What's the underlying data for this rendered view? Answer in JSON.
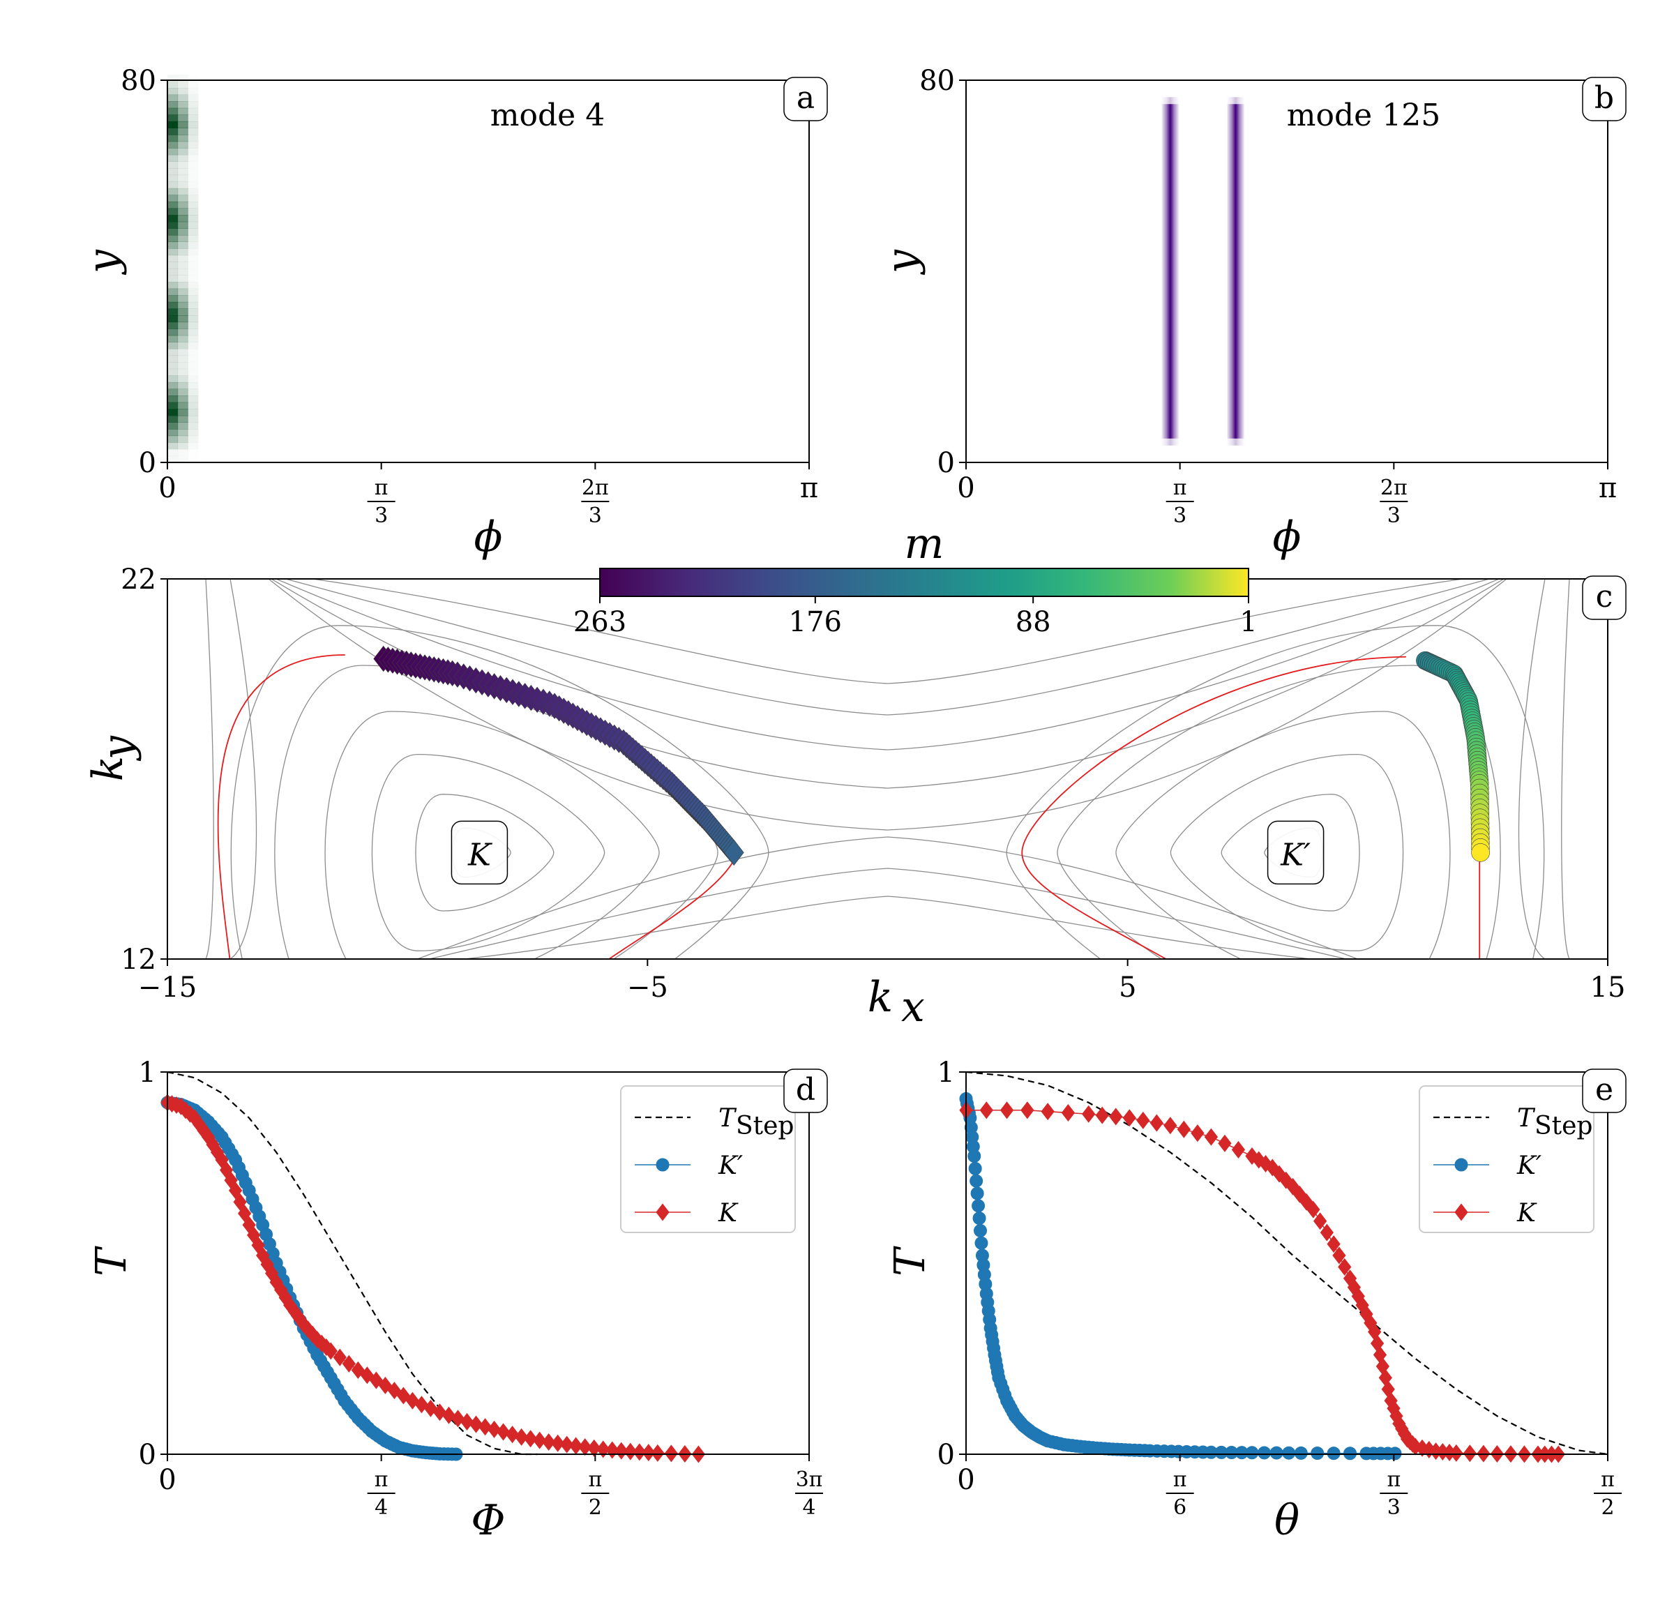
{
  "chart_data": [
    {
      "panel": "a",
      "type": "heatmap",
      "annotation": "mode 4",
      "xlabel": "ϕ",
      "ylabel": "y",
      "xlim": [
        0,
        3.14159
      ],
      "ylim": [
        0,
        80
      ],
      "xticks": [
        {
          "value": 0,
          "label": "0"
        },
        {
          "value": 1.0472,
          "num": "π",
          "den": "3"
        },
        {
          "value": 2.0944,
          "num": "2π",
          "den": "3"
        },
        {
          "value": 3.14159,
          "label": "π"
        }
      ],
      "yticks": [
        {
          "value": 0,
          "label": "0"
        },
        {
          "value": 80,
          "label": "80"
        }
      ],
      "colormap": "Greens",
      "columns": [
        0.0,
        0.05,
        0.1
      ],
      "column_width": 0.05,
      "blobs_y": [
        10,
        30,
        50,
        70
      ],
      "color_dark": "#00441b"
    },
    {
      "panel": "b",
      "type": "heatmap",
      "annotation": "mode 125",
      "xlabel": "ϕ",
      "ylabel": "y",
      "xlim": [
        0,
        3.14159
      ],
      "ylim": [
        0,
        80
      ],
      "xticks": [
        {
          "value": 0,
          "label": "0"
        },
        {
          "value": 1.0472,
          "num": "π",
          "den": "3"
        },
        {
          "value": 2.0944,
          "num": "2π",
          "den": "3"
        },
        {
          "value": 3.14159,
          "label": "π"
        }
      ],
      "yticks": [
        {
          "value": 0,
          "label": "0"
        },
        {
          "value": 80,
          "label": "80"
        }
      ],
      "colormap": "Purples",
      "stripes_x": [
        1.0,
        1.32
      ],
      "stripe_y_range": [
        5,
        75
      ],
      "color_dark": "#3f007d"
    },
    {
      "panel": "c",
      "type": "scatter",
      "xlabel": "k_x",
      "ylabel": "k_y",
      "xlim": [
        -15,
        15
      ],
      "ylim": [
        12,
        22
      ],
      "xticks": [
        -15,
        -5,
        5,
        15
      ],
      "xtick_labels": [
        "−15",
        "−5",
        "5",
        "15"
      ],
      "yticks": [
        12,
        22
      ],
      "valley_labels": [
        {
          "label": "K",
          "x": -8.5,
          "y": 14.8
        },
        {
          "label": "K′",
          "x": 8.5,
          "y": 14.8
        }
      ],
      "colorbar": {
        "label": "m",
        "ticks": [
          "263",
          "176",
          "88",
          "1"
        ],
        "range": [
          263,
          1
        ],
        "colormap": "viridis"
      },
      "series": [
        {
          "name": "K",
          "marker": "diamond",
          "m_range": [
            263,
            170
          ],
          "points": [
            [
              -10.5,
              19.9
            ],
            [
              -9.0,
              19.5
            ],
            [
              -7.0,
              18.7
            ],
            [
              -5.5,
              17.7
            ],
            [
              -4.5,
              16.6
            ],
            [
              -3.8,
              15.7
            ],
            [
              -3.2,
              14.8
            ]
          ]
        },
        {
          "name": "K′",
          "marker": "circle",
          "m_range": [
            135,
            1
          ],
          "points": [
            [
              11.2,
              19.85
            ],
            [
              11.8,
              19.5
            ],
            [
              12.1,
              18.8
            ],
            [
              12.25,
              17.8
            ],
            [
              12.33,
              16.6
            ],
            [
              12.35,
              14.8
            ]
          ]
        }
      ],
      "contour_center_y": 14.8,
      "contour_color": "#8c8c8c",
      "fermi_line_color": "#e41a1c"
    },
    {
      "panel": "d",
      "type": "line",
      "xlabel": "Φ",
      "ylabel": "T",
      "xlim": [
        0,
        2.35619
      ],
      "ylim": [
        0,
        1
      ],
      "xticks": [
        {
          "value": 0,
          "label": "0"
        },
        {
          "value": 0.7854,
          "num": "π",
          "den": "4"
        },
        {
          "value": 1.5708,
          "num": "π",
          "den": "2"
        },
        {
          "value": 2.35619,
          "num": "3π",
          "den": "4"
        }
      ],
      "yticks": [
        0,
        1
      ],
      "legend_position": "top-right",
      "series": [
        {
          "name": "T_Step",
          "legend_main": "T",
          "legend_sub": "Step",
          "style": "dashed",
          "color": "#000000",
          "x": [
            0.0,
            0.1,
            0.2,
            0.3,
            0.4,
            0.5,
            0.6,
            0.7,
            0.8,
            0.9,
            1.0,
            1.1,
            1.2,
            1.3,
            1.36
          ],
          "y": [
            1.0,
            0.985,
            0.945,
            0.88,
            0.79,
            0.68,
            0.56,
            0.44,
            0.32,
            0.21,
            0.12,
            0.05,
            0.015,
            0.0,
            0.0
          ]
        },
        {
          "name": "K′",
          "legend_main": "K′",
          "legend_sub": "",
          "style": "marker",
          "marker": "circle",
          "color": "#1f77b4",
          "x": [
            0.0,
            0.05,
            0.1,
            0.15,
            0.2,
            0.25,
            0.3,
            0.35,
            0.4,
            0.45,
            0.5,
            0.55,
            0.6,
            0.65,
            0.7,
            0.75,
            0.8,
            0.85,
            0.9,
            0.95,
            1.0,
            1.06
          ],
          "y": [
            0.92,
            0.915,
            0.9,
            0.87,
            0.83,
            0.77,
            0.69,
            0.6,
            0.5,
            0.41,
            0.33,
            0.26,
            0.2,
            0.14,
            0.095,
            0.06,
            0.035,
            0.018,
            0.009,
            0.004,
            0.001,
            0.0
          ]
        },
        {
          "name": "K",
          "legend_main": "K",
          "legend_sub": "",
          "style": "marker",
          "marker": "diamond",
          "color": "#d62728",
          "x": [
            0.0,
            0.05,
            0.1,
            0.15,
            0.2,
            0.25,
            0.3,
            0.35,
            0.4,
            0.45,
            0.5,
            0.55,
            0.6,
            0.7,
            0.8,
            0.9,
            1.0,
            1.1,
            1.2,
            1.3,
            1.4,
            1.5,
            1.6,
            1.7,
            1.8,
            1.95
          ],
          "y": [
            0.92,
            0.91,
            0.88,
            0.83,
            0.77,
            0.69,
            0.6,
            0.52,
            0.45,
            0.39,
            0.34,
            0.3,
            0.27,
            0.22,
            0.18,
            0.14,
            0.11,
            0.085,
            0.065,
            0.045,
            0.032,
            0.022,
            0.013,
            0.007,
            0.003,
            0.0
          ]
        }
      ]
    },
    {
      "panel": "e",
      "type": "line",
      "xlabel": "θ",
      "ylabel": "T",
      "xlim": [
        0,
        1.5708
      ],
      "ylim": [
        0,
        1
      ],
      "xticks": [
        {
          "value": 0,
          "label": "0"
        },
        {
          "value": 0.5236,
          "num": "π",
          "den": "6"
        },
        {
          "value": 1.0472,
          "num": "π",
          "den": "3"
        },
        {
          "value": 1.5708,
          "num": "π",
          "den": "2"
        }
      ],
      "yticks": [
        0,
        1
      ],
      "legend_position": "top-right",
      "series": [
        {
          "name": "T_Step",
          "legend_main": "T",
          "legend_sub": "Step",
          "style": "dashed",
          "color": "#000000",
          "x": [
            0.0,
            0.1,
            0.2,
            0.3,
            0.4,
            0.5,
            0.6,
            0.7,
            0.8,
            0.9,
            1.0,
            1.1,
            1.2,
            1.3,
            1.4,
            1.5,
            1.5708
          ],
          "y": [
            1.0,
            0.99,
            0.965,
            0.92,
            0.86,
            0.79,
            0.71,
            0.62,
            0.52,
            0.43,
            0.34,
            0.25,
            0.17,
            0.1,
            0.045,
            0.01,
            0.0
          ]
        },
        {
          "name": "K′",
          "legend_main": "K′",
          "legend_sub": "",
          "style": "marker",
          "marker": "circle",
          "color": "#1f77b4",
          "x": [
            0.0,
            0.01,
            0.02,
            0.03,
            0.04,
            0.05,
            0.06,
            0.07,
            0.08,
            0.1,
            0.12,
            0.14,
            0.16,
            0.18,
            0.2,
            0.24,
            0.28,
            0.32,
            0.36,
            0.4,
            0.45,
            0.52,
            0.6,
            0.7,
            0.82,
            0.98,
            1.05
          ],
          "y": [
            0.93,
            0.88,
            0.78,
            0.65,
            0.52,
            0.42,
            0.33,
            0.26,
            0.2,
            0.14,
            0.1,
            0.075,
            0.058,
            0.045,
            0.035,
            0.025,
            0.02,
            0.016,
            0.013,
            0.011,
            0.009,
            0.007,
            0.005,
            0.004,
            0.003,
            0.002,
            0.002
          ]
        },
        {
          "name": "K",
          "legend_main": "K",
          "legend_sub": "",
          "style": "marker",
          "marker": "diamond",
          "color": "#d62728",
          "x": [
            0.0,
            0.15,
            0.3,
            0.4,
            0.5,
            0.6,
            0.7,
            0.75,
            0.8,
            0.85,
            0.9,
            0.94,
            0.97,
            1.0,
            1.02,
            1.04,
            1.06,
            1.08,
            1.1,
            1.15,
            1.2,
            1.3,
            1.4,
            1.45
          ],
          "y": [
            0.9,
            0.9,
            0.89,
            0.88,
            0.86,
            0.83,
            0.78,
            0.75,
            0.7,
            0.64,
            0.55,
            0.46,
            0.39,
            0.32,
            0.23,
            0.14,
            0.08,
            0.04,
            0.02,
            0.008,
            0.003,
            0.001,
            0.0,
            0.0
          ]
        }
      ]
    }
  ]
}
